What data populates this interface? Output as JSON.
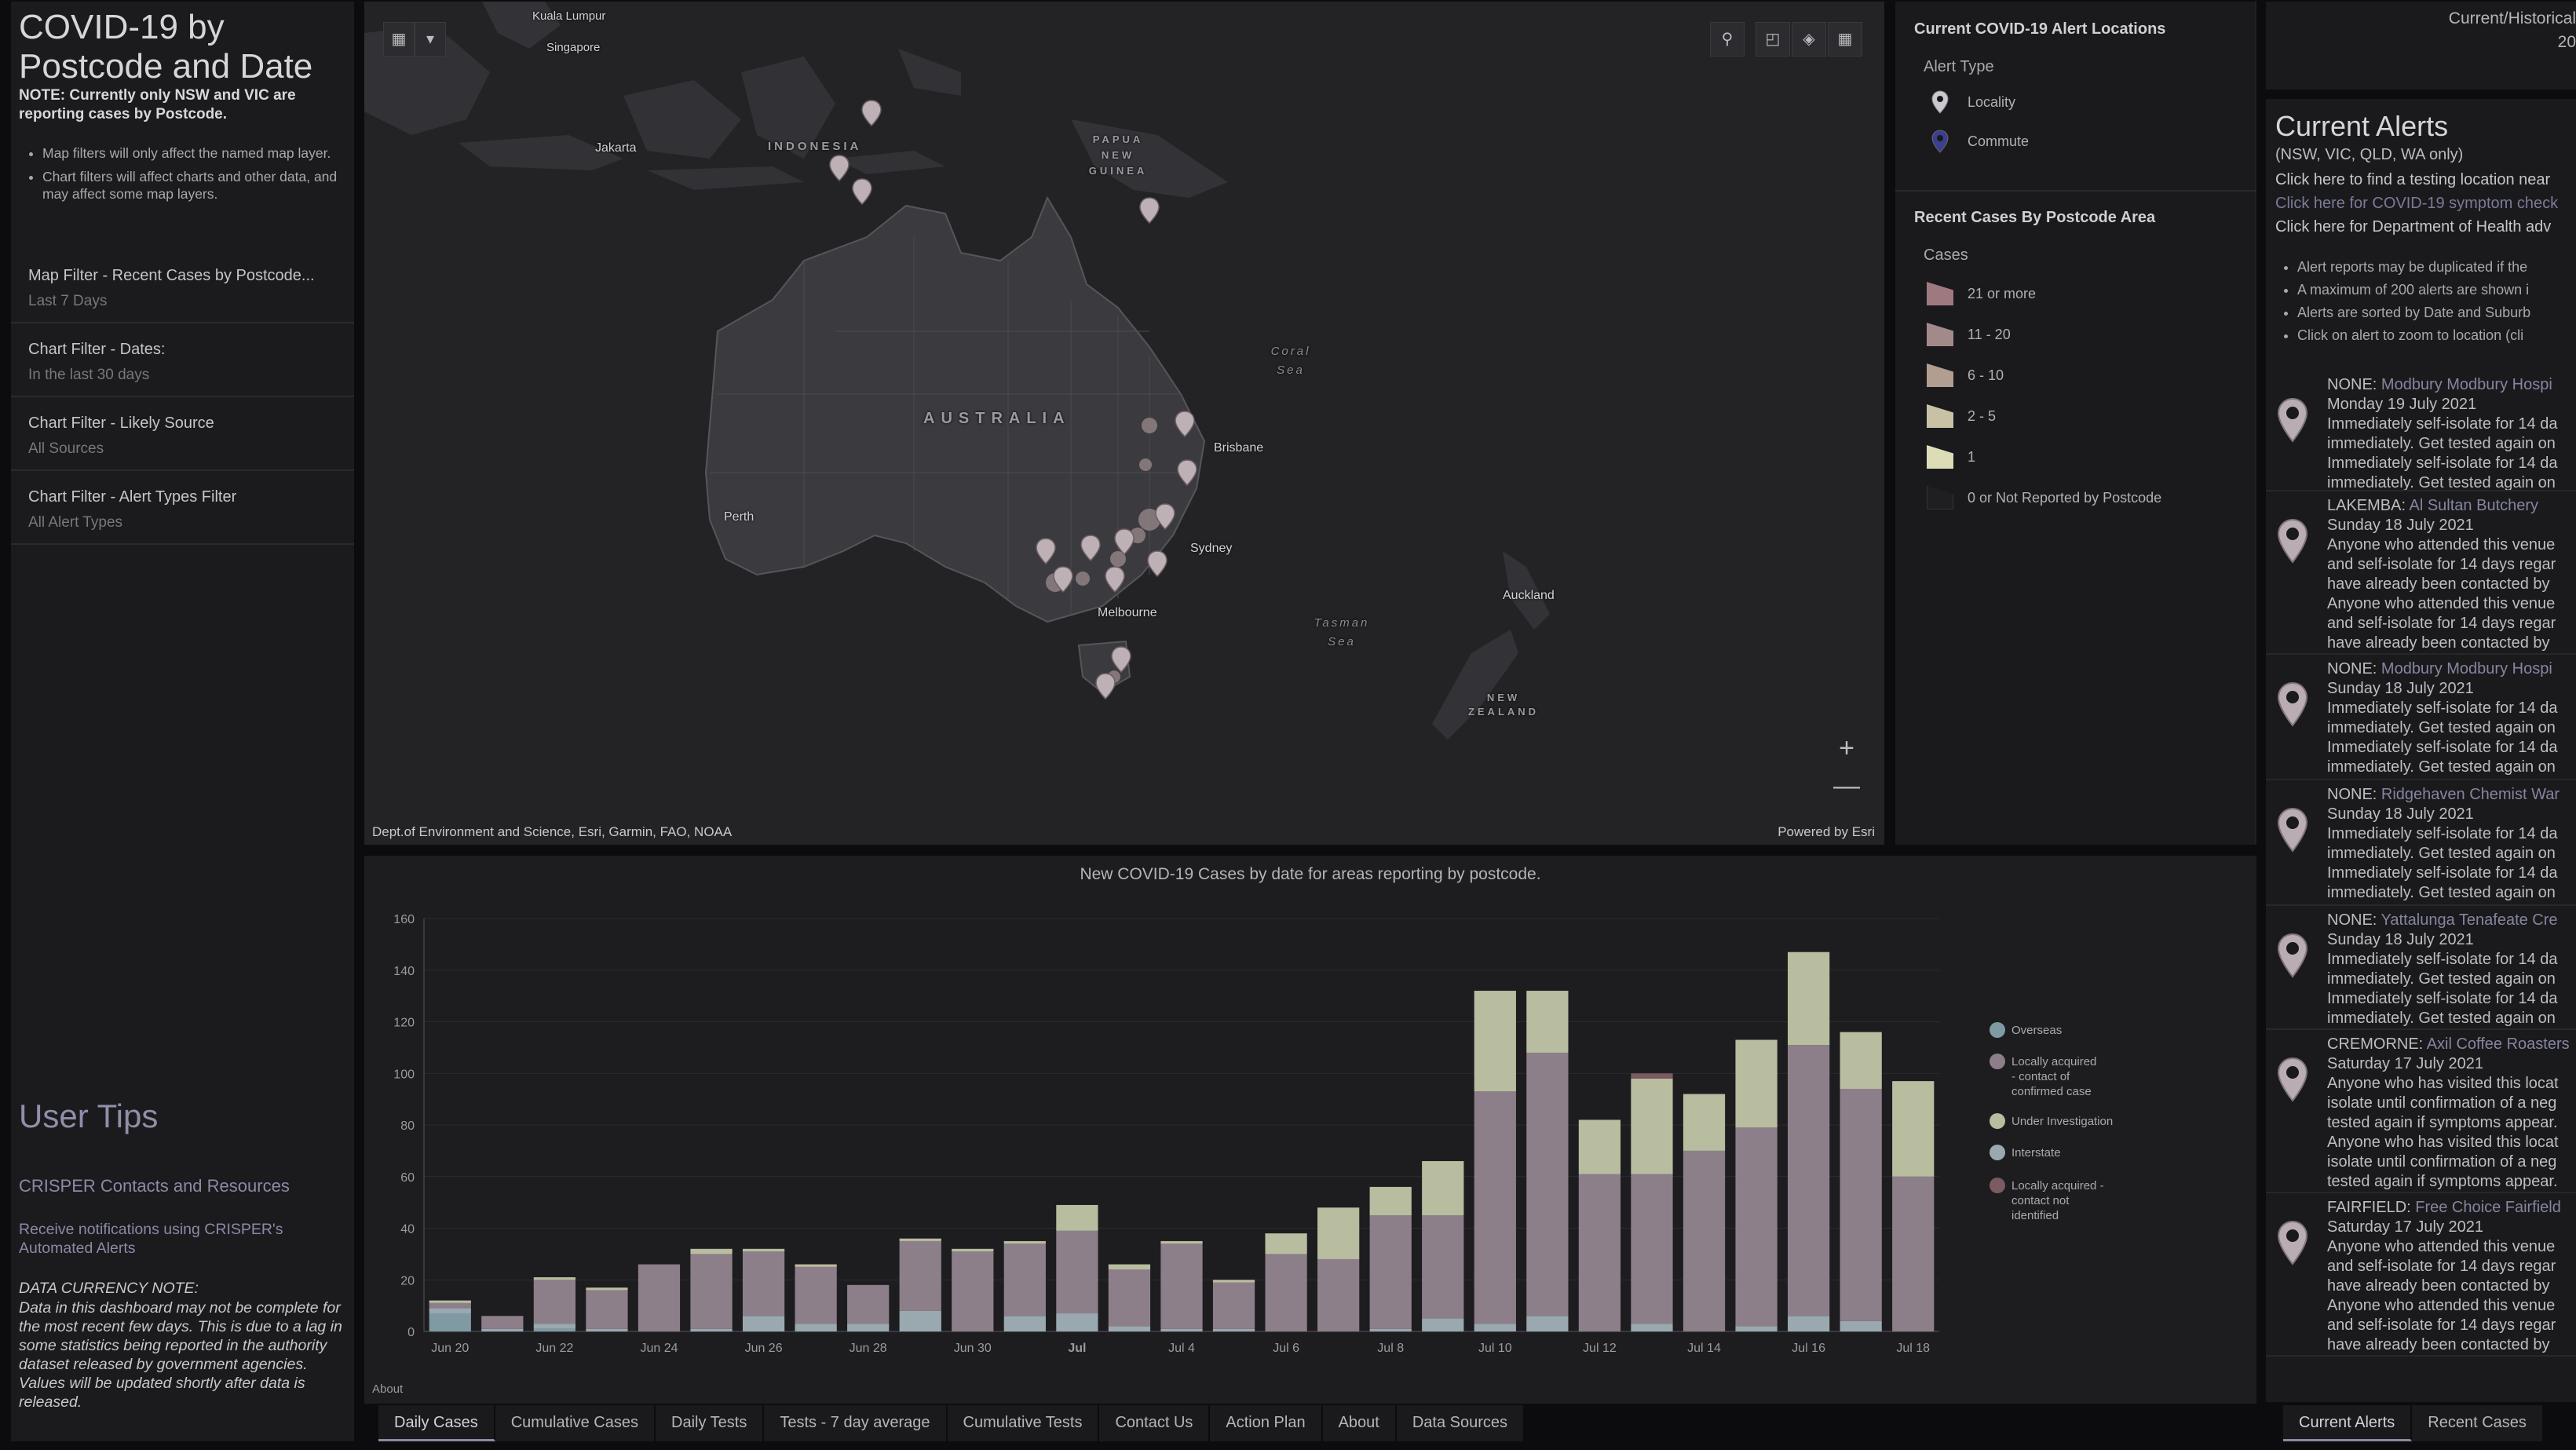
{
  "left": {
    "title": "COVID-19 by Postcode and Date",
    "note": "NOTE: Currently only NSW and VIC are reporting cases by Postcode.",
    "bullets": [
      "Map filters will only affect the named map layer.",
      "Chart filters will affect charts and other data, and may affect some map layers."
    ],
    "filters": [
      {
        "label": "Map Filter - Recent Cases by Postcode...",
        "value": "Last 7 Days"
      },
      {
        "label": "Chart Filter - Dates:",
        "value": "In the last 30 days"
      },
      {
        "label": "Chart Filter - Likely Source",
        "value": "All Sources"
      },
      {
        "label": "Chart Filter - Alert Types Filter",
        "value": "All Alert Types"
      }
    ],
    "tips_title": "User Tips",
    "crisper_link": "CRISPER Contacts and Resources",
    "notify_link": "Receive notifications using CRISPER's Automated Alerts",
    "data_currency_title": "DATA CURRENCY NOTE:",
    "data_currency_text": "Data in this dashboard may not be complete for the most recent few days.  This is due to a lag in some statistics being reported in the authority dataset released by government agencies.  Values will be updated shortly after data is released."
  },
  "map": {
    "labels": {
      "kl": "Kuala Lumpur",
      "singapore": "Singapore",
      "jakarta": "Jakarta",
      "indonesia": "INDONESIA",
      "png": "PAPUA NEW GUINEA",
      "australia": "AUSTRALIA",
      "coral": "Coral Sea",
      "tasman": "Tasman Sea",
      "brisbane": "Brisbane",
      "sydney": "Sydney",
      "melbourne": "Melbourne",
      "perth": "Perth",
      "auckland": "Auckland",
      "nz": "NEW ZEALAND"
    },
    "zoom_in": "+",
    "zoom_out": "—",
    "attribution": "Dept.of Environment and Science, Esri, Garmin, FAO, NOAA",
    "powered": "Powered by Esri",
    "tools": [
      "search-icon",
      "bookmark-icon",
      "layers-icon",
      "basemap-gallery-icon"
    ]
  },
  "legend": {
    "alert_title": "Current COVID-19 Alert Locations",
    "alert_type": "Alert Type",
    "alert_items": [
      {
        "label": "Locality",
        "color": "#c9c9cf"
      },
      {
        "label": "Commute",
        "color": "#3a3f8f"
      }
    ],
    "cases_title": "Recent Cases By Postcode Area",
    "cases_sub": "Cases",
    "case_items": [
      {
        "label": "21 or more",
        "color": "#9e7a80"
      },
      {
        "label": "11 - 20",
        "color": "#a38a8a"
      },
      {
        "label": "6 - 10",
        "color": "#b19e91"
      },
      {
        "label": "2 - 5",
        "color": "#c9c1a6"
      },
      {
        "label": "1",
        "color": "#dcdcb6"
      },
      {
        "label": "0 or Not Reported by Postcode",
        "color": "#1f1f22"
      }
    ]
  },
  "chart_data": {
    "type": "bar",
    "stacked": true,
    "title": "New COVID-19 Cases by date for areas reporting by postcode.",
    "ylim": [
      0,
      160
    ],
    "yticks": [
      0,
      20,
      40,
      60,
      80,
      100,
      120,
      140,
      160
    ],
    "categories": [
      "Jun 20",
      "Jun 21",
      "Jun 22",
      "Jun 23",
      "Jun 24",
      "Jun 25",
      "Jun 26",
      "Jun 27",
      "Jun 28",
      "Jun 29",
      "Jun 30",
      "Jul 1",
      "Jul 2",
      "Jul 3",
      "Jul 4",
      "Jul 5",
      "Jul 6",
      "Jul 7",
      "Jul 8",
      "Jul 9",
      "Jul 10",
      "Jul 11",
      "Jul 12",
      "Jul 13",
      "Jul 14",
      "Jul 15",
      "Jul 16",
      "Jul 17",
      "Jul 18"
    ],
    "xtick_labels": [
      "Jun 20",
      "",
      "Jun 22",
      "",
      "Jun 24",
      "",
      "Jun 26",
      "",
      "Jun 28",
      "",
      "Jun 30",
      "",
      "Jul",
      "",
      "Jul 4",
      "",
      "Jul 6",
      "",
      "Jul 8",
      "",
      "Jul 10",
      "",
      "Jul 12",
      "",
      "Jul 14",
      "",
      "Jul 16",
      "",
      "Jul 18"
    ],
    "series": [
      {
        "name": "Overseas",
        "color": "#7f9aa3",
        "values": [
          7,
          0,
          1,
          0,
          0,
          0,
          0,
          0,
          0,
          0,
          0,
          0,
          0,
          0,
          0,
          0,
          0,
          0,
          0,
          0,
          0,
          0,
          0,
          0,
          0,
          0,
          0,
          0,
          0
        ]
      },
      {
        "name": "Interstate",
        "color": "#9aa9b0",
        "values": [
          2,
          1,
          2,
          1,
          0,
          1,
          6,
          3,
          3,
          8,
          0,
          6,
          7,
          2,
          1,
          1,
          0,
          0,
          1,
          5,
          3,
          6,
          0,
          3,
          0,
          2,
          6,
          4,
          0
        ]
      },
      {
        "name": "Locally acquired - contact of confirmed case",
        "color": "#8d7f8a",
        "values": [
          2,
          5,
          17,
          15,
          26,
          29,
          25,
          22,
          15,
          27,
          31,
          28,
          32,
          22,
          33,
          18,
          30,
          28,
          44,
          40,
          90,
          102,
          61,
          58,
          70,
          77,
          105,
          90,
          60
        ]
      },
      {
        "name": "Under Investigation",
        "color": "#b9bda0",
        "values": [
          1,
          0,
          1,
          1,
          0,
          2,
          1,
          1,
          0,
          1,
          1,
          1,
          10,
          2,
          1,
          1,
          8,
          20,
          11,
          21,
          39,
          24,
          21,
          37,
          22,
          34,
          36,
          22,
          37
        ]
      },
      {
        "name": "Locally acquired - contact not identified",
        "color": "#7b5a61",
        "values": [
          0,
          0,
          0,
          0,
          0,
          0,
          0,
          0,
          0,
          0,
          0,
          0,
          0,
          0,
          0,
          0,
          0,
          0,
          0,
          0,
          0,
          0,
          0,
          2,
          0,
          0,
          0,
          0,
          0
        ]
      }
    ],
    "about": "About"
  },
  "tabs": [
    "Daily Cases",
    "Cumulative Cases",
    "Daily Tests",
    "Tests - 7 day average",
    "Cumulative Tests",
    "Contact Us",
    "Action Plan",
    "About",
    "Data Sources"
  ],
  "right": {
    "hist_line1": "Current/Historical",
    "hist_line2": "20",
    "alerts_title": "Current Alerts",
    "alerts_sub": "(NSW, VIC, QLD, WA only)",
    "links": [
      {
        "text": "Click here to find a testing location near",
        "color": "#c6c6ca"
      },
      {
        "text": "Click here for COVID-19 symptom check",
        "color": "#7b7b98"
      },
      {
        "text": "Click here for Department of Health adv",
        "color": "#c6c6ca"
      }
    ],
    "bullets": [
      "Alert reports may be duplicated if the",
      "A maximum of 200 alerts are shown i",
      "Alerts are sorted by Date and Suburb",
      "Click on alert to zoom to location (cli"
    ],
    "alerts": [
      {
        "prefix": "NONE: ",
        "place": "Modbury Modbury Hospi",
        "date": "Monday 19 July 2021",
        "lines": [
          "Immediately self-isolate for 14 da",
          "immediately. Get tested again on",
          "Immediately self-isolate for 14 da",
          "immediately. Get tested again on"
        ]
      },
      {
        "prefix": "LAKEMBA: ",
        "place": "Al Sultan Butchery",
        "date": "Sunday 18 July 2021",
        "lines": [
          "Anyone who attended this venue",
          "and self-isolate for 14 days regar",
          "have already been contacted by",
          "Anyone who attended this venue",
          "and self-isolate for 14 days regar",
          "have already been contacted by"
        ]
      },
      {
        "prefix": "NONE: ",
        "place": "Modbury Modbury Hospi",
        "date": "Sunday 18 July 2021",
        "lines": [
          "Immediately self-isolate for 14 da",
          "immediately. Get tested again on",
          "Immediately self-isolate for 14 da",
          "immediately. Get tested again on"
        ]
      },
      {
        "prefix": "NONE: ",
        "place": "Ridgehaven Chemist War",
        "date": "Sunday 18 July 2021",
        "lines": [
          "Immediately self-isolate for 14 da",
          "immediately. Get tested again on",
          "Immediately self-isolate for 14 da",
          "immediately. Get tested again on"
        ]
      },
      {
        "prefix": "NONE: ",
        "place": "Yattalunga Tenafeate Cre",
        "date": "Sunday 18 July 2021",
        "lines": [
          "Immediately self-isolate for 14 da",
          "immediately. Get tested again on",
          "Immediately self-isolate for 14 da",
          "immediately. Get tested again on"
        ]
      },
      {
        "prefix": "CREMORNE: ",
        "place": "Axil Coffee Roasters",
        "date": "Saturday 17 July 2021",
        "lines": [
          "Anyone who has visited this locat",
          "isolate until confirmation of a neg",
          "tested again if symptoms appear.",
          "Anyone who has visited this locat",
          "isolate until confirmation of a neg",
          "tested again if symptoms appear."
        ]
      },
      {
        "prefix": "FAIRFIELD: ",
        "place": "Free Choice Fairfield",
        "date": "Saturday 17 July 2021",
        "lines": [
          "Anyone who attended this venue",
          "and self-isolate for 14 days regar",
          "have already been contacted by",
          "Anyone who attended this venue",
          "and self-isolate for 14 days regar",
          "have already been contacted by"
        ]
      }
    ],
    "tabs": [
      "Current Alerts",
      "Recent Cases"
    ]
  }
}
